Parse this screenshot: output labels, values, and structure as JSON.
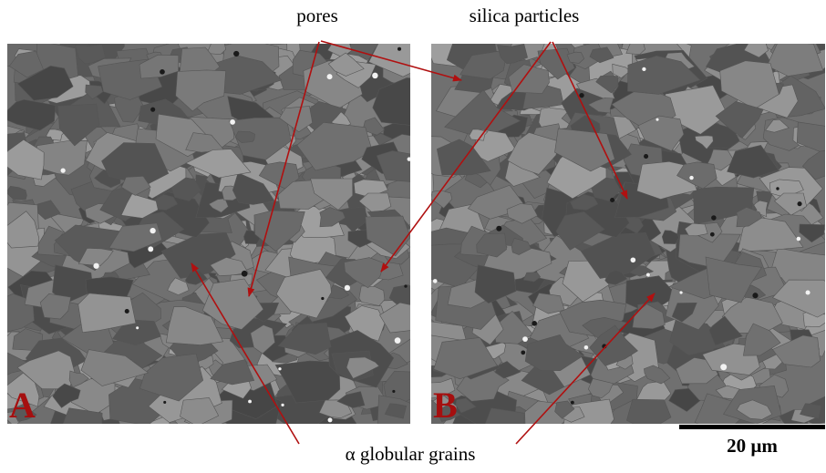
{
  "annotations": {
    "pores": "pores",
    "silica": "silica particles",
    "grains": "α globular grains"
  },
  "panels": [
    {
      "label": "A"
    },
    {
      "label": "B"
    }
  ],
  "scale_bar": {
    "label": "20 µm"
  }
}
